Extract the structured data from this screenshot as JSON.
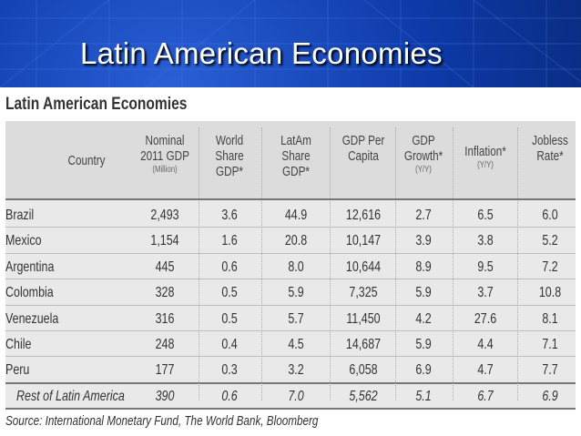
{
  "slide": {
    "title": "Latin American Economies"
  },
  "table": {
    "title": "Latin American Economies",
    "headers": [
      {
        "lines": [
          "Country"
        ],
        "sub": ""
      },
      {
        "lines": [
          "Nominal",
          "2011 GDP"
        ],
        "sub": "(Million)"
      },
      {
        "lines": [
          "World Share",
          "GDP*"
        ],
        "sub": ""
      },
      {
        "lines": [
          "LatAm",
          "Share GDP*"
        ],
        "sub": ""
      },
      {
        "lines": [
          "GDP Per",
          "Capita"
        ],
        "sub": ""
      },
      {
        "lines": [
          "GDP",
          "Growth*"
        ],
        "sub": "(Y/Y)"
      },
      {
        "lines": [
          "Inflation*"
        ],
        "sub": "(Y/Y)"
      },
      {
        "lines": [
          "Jobless",
          "Rate*"
        ],
        "sub": ""
      }
    ],
    "rows": [
      [
        "Brazil",
        "2,493",
        "3.6",
        "44.9",
        "12,616",
        "2.7",
        "6.5",
        "6.0"
      ],
      [
        "Mexico",
        "1,154",
        "1.6",
        "20.8",
        "10,147",
        "3.9",
        "3.8",
        "5.2"
      ],
      [
        "Argentina",
        "445",
        "0.6",
        "8.0",
        "10,644",
        "8.9",
        "9.5",
        "7.2"
      ],
      [
        "Colombia",
        "328",
        "0.5",
        "5.9",
        "7,325",
        "5.9",
        "3.7",
        "10.8"
      ],
      [
        "Venezuela",
        "316",
        "0.5",
        "5.7",
        "11,450",
        "4.2",
        "27.6",
        "8.1"
      ],
      [
        "Chile",
        "248",
        "0.4",
        "4.5",
        "14,687",
        "5.9",
        "4.4",
        "7.1"
      ],
      [
        "Peru",
        "177",
        "0.3",
        "3.2",
        "6,058",
        "6.9",
        "4.7",
        "7.7"
      ],
      [
        "Rest of Latin America",
        "390",
        "0.6",
        "7.0",
        "5,562",
        "5.1",
        "6.7",
        "6.9"
      ]
    ],
    "source": "Source: International Monetary Fund, The World Bank, Bloomberg"
  }
}
